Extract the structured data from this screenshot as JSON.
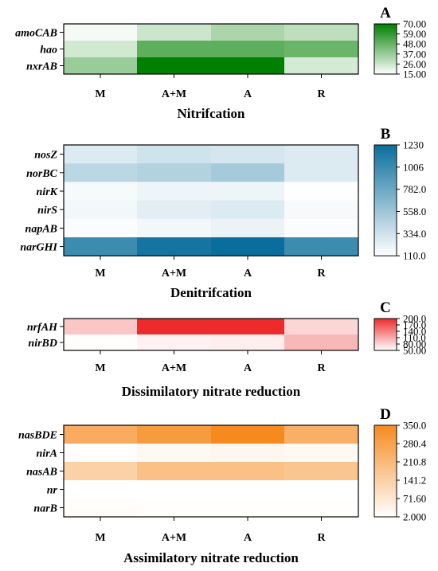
{
  "chart_data": [
    {
      "type": "heatmap",
      "panel_letter": "A",
      "title": "Nitrifcation",
      "columns": [
        "M",
        "A+M",
        "A",
        "R"
      ],
      "rows": [
        "amoCAB",
        "hao",
        "nxrAB"
      ],
      "values": [
        [
          17,
          26,
          33,
          29
        ],
        [
          25,
          50,
          50,
          47
        ],
        [
          37,
          70,
          70,
          24
        ]
      ],
      "color_range": [
        15,
        70
      ],
      "colorbar_ticks": [
        "70.00",
        "59.00",
        "48.00",
        "37.00",
        "26.00",
        "15.00"
      ],
      "color_low": "#ffffff",
      "color_high": "#008000"
    },
    {
      "type": "heatmap",
      "panel_letter": "B",
      "title": "Denitrifcation",
      "columns": [
        "M",
        "A+M",
        "A",
        "R"
      ],
      "rows": [
        "nosZ",
        "norBC",
        "nirK",
        "nirS",
        "napAB",
        "narGHI"
      ],
      "values": [
        [
          270,
          330,
          300,
          270
        ],
        [
          420,
          460,
          520,
          270
        ],
        [
          150,
          190,
          190,
          120
        ],
        [
          170,
          240,
          270,
          150
        ],
        [
          135,
          170,
          200,
          130
        ],
        [
          1000,
          1180,
          1230,
          1000
        ]
      ],
      "color_range": [
        110,
        1230
      ],
      "colorbar_ticks": [
        "1230",
        "1006",
        "782.0",
        "558.0",
        "334.0",
        "110.0"
      ],
      "color_low": "#ffffff",
      "color_high": "#0a6e9c"
    },
    {
      "type": "heatmap",
      "panel_letter": "C",
      "title": "Dissimilatory nitrate reduction",
      "columns": [
        "M",
        "A+M",
        "A",
        "R"
      ],
      "rows": [
        "nrfAH",
        "nirBD"
      ],
      "values": [
        [
          90,
          200,
          200,
          80
        ],
        [
          52,
          60,
          62,
          100
        ]
      ],
      "color_range": [
        50,
        200
      ],
      "colorbar_ticks": [
        "200.0",
        "170.0",
        "140.0",
        "110.0",
        "80.00",
        "50.00"
      ],
      "color_low": "#ffffff",
      "color_high": "#ee2b2b"
    },
    {
      "type": "heatmap",
      "panel_letter": "D",
      "title": "Assimilatory nitrate reduction",
      "columns": [
        "M",
        "A+M",
        "A",
        "R"
      ],
      "rows": [
        "nasBDE",
        "nirA",
        "nasAB",
        "nr",
        "narB"
      ],
      "values": [
        [
          250,
          300,
          350,
          240
        ],
        [
          5,
          20,
          25,
          20
        ],
        [
          140,
          190,
          190,
          175
        ],
        [
          2,
          2,
          2,
          2
        ],
        [
          10,
          5,
          5,
          5
        ]
      ],
      "color_range": [
        2,
        350
      ],
      "colorbar_ticks": [
        "350.0",
        "280.4",
        "210.8",
        "141.2",
        "71.60",
        "2.000"
      ],
      "color_low": "#ffffff",
      "color_high": "#f68a1f"
    }
  ]
}
